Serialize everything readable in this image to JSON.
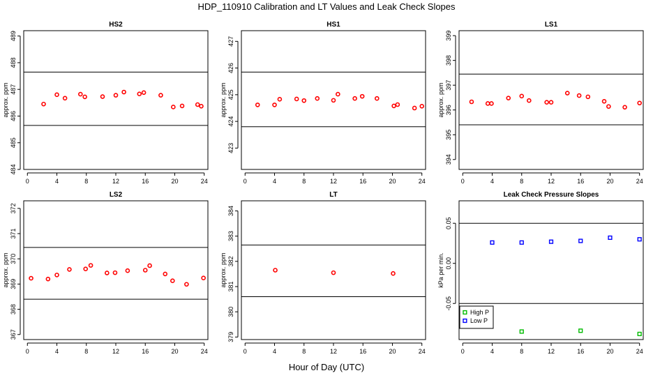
{
  "figure": {
    "title": "HDP_110910  Calibration and LT Values and Leak Check Slopes",
    "xlabel": "Hour of Day (UTC)"
  },
  "chart_data": [
    {
      "type": "scatter",
      "title": "HS2",
      "ylabel": "approx. ppm",
      "xlim": [
        -0.5,
        24.5
      ],
      "ylim": [
        484,
        489.2
      ],
      "xticks": [
        0,
        4,
        8,
        12,
        16,
        20,
        24
      ],
      "yticks": [
        484,
        485,
        486,
        487,
        488,
        489
      ],
      "hlines": [
        487.65,
        485.65
      ],
      "series": [
        {
          "color": "#ff0000",
          "marker": "circle",
          "x": [
            2.2,
            4.0,
            5.1,
            7.2,
            7.8,
            10.2,
            12.0,
            13.1,
            15.2,
            15.8,
            18.1,
            19.8,
            21.0,
            23.1,
            23.6
          ],
          "y": [
            486.45,
            486.8,
            486.67,
            486.82,
            486.72,
            486.73,
            486.78,
            486.9,
            486.83,
            486.88,
            486.78,
            486.34,
            486.38,
            486.43,
            486.37
          ]
        }
      ]
    },
    {
      "type": "scatter",
      "title": "HS1",
      "ylabel": "approx. ppm",
      "xlim": [
        -0.5,
        24.5
      ],
      "ylim": [
        422.2,
        427.4
      ],
      "xticks": [
        0,
        4,
        8,
        12,
        16,
        20,
        24
      ],
      "yticks": [
        423,
        424,
        425,
        426,
        427
      ],
      "hlines": [
        425.85,
        423.8
      ],
      "series": [
        {
          "color": "#ff0000",
          "marker": "circle",
          "x": [
            1.7,
            4.0,
            4.7,
            7.0,
            8.0,
            9.8,
            12.0,
            12.6,
            14.9,
            15.9,
            17.9,
            20.2,
            20.7,
            23.0,
            24.0
          ],
          "y": [
            424.62,
            424.62,
            424.83,
            424.84,
            424.78,
            424.86,
            424.79,
            425.02,
            424.86,
            424.94,
            424.86,
            424.58,
            424.63,
            424.5,
            424.57
          ]
        }
      ]
    },
    {
      "type": "scatter",
      "title": "LS1",
      "ylabel": "approx. ppm",
      "xlim": [
        -0.5,
        24.5
      ],
      "ylim": [
        393.6,
        399.2
      ],
      "xticks": [
        0,
        4,
        8,
        12,
        16,
        20,
        24
      ],
      "yticks": [
        394,
        395,
        396,
        397,
        398,
        399
      ],
      "hlines": [
        397.45,
        395.4
      ],
      "series": [
        {
          "color": "#ff0000",
          "marker": "circle",
          "x": [
            1.2,
            3.4,
            3.9,
            6.2,
            8.0,
            9.0,
            11.4,
            12.0,
            14.2,
            15.8,
            17.0,
            19.2,
            19.8,
            22.0,
            24.0
          ],
          "y": [
            396.33,
            396.26,
            396.26,
            396.48,
            396.56,
            396.38,
            396.31,
            396.31,
            396.68,
            396.58,
            396.53,
            396.35,
            396.14,
            396.11,
            396.28
          ]
        }
      ]
    },
    {
      "type": "scatter",
      "title": "LS2",
      "ylabel": "approx. ppm",
      "xlim": [
        -0.5,
        24.5
      ],
      "ylim": [
        366.8,
        372.3
      ],
      "xticks": [
        0,
        4,
        8,
        12,
        16,
        20,
        24
      ],
      "yticks": [
        367,
        368,
        369,
        370,
        371,
        372
      ],
      "hlines": [
        370.45,
        368.4
      ],
      "series": [
        {
          "color": "#ff0000",
          "marker": "circle",
          "x": [
            0.5,
            2.8,
            4.0,
            5.7,
            7.9,
            8.6,
            10.8,
            11.9,
            13.6,
            16.0,
            16.6,
            18.7,
            19.7,
            21.6,
            23.9
          ],
          "y": [
            369.23,
            369.2,
            369.36,
            369.58,
            369.6,
            369.74,
            369.44,
            369.45,
            369.53,
            369.55,
            369.73,
            369.4,
            369.13,
            368.99,
            369.24
          ]
        }
      ]
    },
    {
      "type": "scatter",
      "title": "LT",
      "ylabel": "approx. ppm",
      "xlim": [
        -0.5,
        24.5
      ],
      "ylim": [
        378.9,
        384.4
      ],
      "xticks": [
        0,
        4,
        8,
        12,
        16,
        20,
        24
      ],
      "yticks": [
        379,
        380,
        381,
        382,
        383,
        384
      ],
      "hlines": [
        382.65,
        380.6
      ],
      "series": [
        {
          "color": "#ff0000",
          "marker": "circle",
          "x": [
            4.1,
            12.0,
            20.1
          ],
          "y": [
            381.65,
            381.55,
            381.52
          ]
        }
      ]
    },
    {
      "type": "scatter",
      "title": "Leak Check Pressure Slopes",
      "ylabel": "kPa per min.",
      "xlim": [
        -0.5,
        24.5
      ],
      "ylim": [
        -0.095,
        0.078
      ],
      "xticks": [
        0,
        4,
        8,
        12,
        16,
        20,
        24
      ],
      "yticks": [
        -0.05,
        0.0,
        0.05
      ],
      "ytick_labels": [
        "-0.05",
        "0.00",
        "0.05"
      ],
      "hlines": [
        0.05,
        -0.05
      ],
      "legend": {
        "position": "bottom-left"
      },
      "series": [
        {
          "name": "High P",
          "color": "#00bb00",
          "marker": "square",
          "x": [
            8.0,
            16.0,
            24.0
          ],
          "y": [
            -0.085,
            -0.084,
            -0.088
          ]
        },
        {
          "name": "Low P",
          "color": "#0000ff",
          "marker": "square",
          "x": [
            4.0,
            8.0,
            12.0,
            16.0,
            20.0,
            24.0
          ],
          "y": [
            0.026,
            0.026,
            0.027,
            0.028,
            0.032,
            0.03
          ]
        }
      ]
    }
  ]
}
